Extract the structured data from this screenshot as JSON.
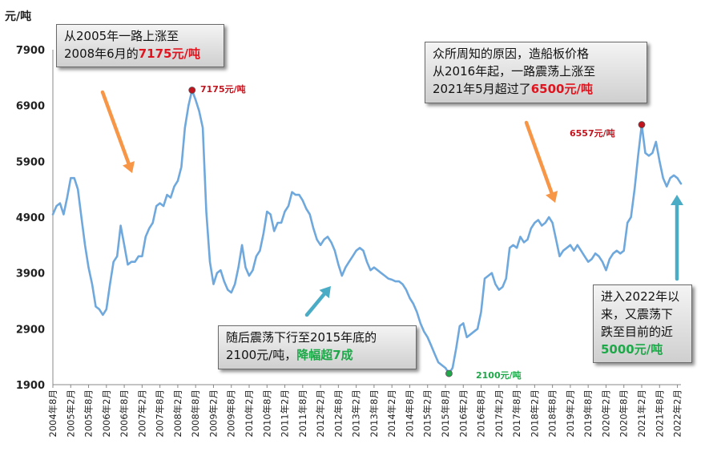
{
  "chart_data": {
    "type": "line",
    "ylabel": "元/吨",
    "ylim": [
      1900,
      7900
    ],
    "yticks": [
      1900,
      2900,
      3900,
      4900,
      5900,
      6900,
      7900
    ],
    "xticks": [
      "2004年8月",
      "2005年2月",
      "2005年8月",
      "2006年2月",
      "2006年8月",
      "2007年2月",
      "2007年8月",
      "2008年2月",
      "2008年8月",
      "2009年2月",
      "2009年8月",
      "2010年2月",
      "2010年8月",
      "2011年2月",
      "2011年8月",
      "2012年2月",
      "2012年8月",
      "2013年2月",
      "2013年8月",
      "2014年2月",
      "2014年8月",
      "2015年2月",
      "2015年8月",
      "2016年2月",
      "2016年8月",
      "2017年2月",
      "2017年8月",
      "2018年2月",
      "2018年8月",
      "2019年2月",
      "2019年8月",
      "2020年2月",
      "2020年8月",
      "2021年2月",
      "2021年8月",
      "2022年2月"
    ],
    "line_color": "#6fa8dc",
    "series": [
      {
        "values": [
          [
            0,
            4950
          ],
          [
            0.5,
            5100
          ],
          [
            1,
            5150
          ],
          [
            1.5,
            4950
          ],
          [
            2,
            5250
          ],
          [
            2.5,
            5600
          ],
          [
            3,
            5600
          ],
          [
            3.5,
            5400
          ],
          [
            4,
            4900
          ],
          [
            4.5,
            4400
          ],
          [
            5,
            4000
          ],
          [
            5.5,
            3700
          ],
          [
            6,
            3300
          ],
          [
            6.5,
            3250
          ],
          [
            7,
            3150
          ],
          [
            7.5,
            3250
          ],
          [
            8,
            3700
          ],
          [
            8.5,
            4100
          ],
          [
            9,
            4200
          ],
          [
            9.5,
            4750
          ],
          [
            10,
            4400
          ],
          [
            10.5,
            4050
          ],
          [
            11,
            4100
          ],
          [
            11.5,
            4100
          ],
          [
            12,
            4200
          ],
          [
            12.5,
            4200
          ],
          [
            13,
            4550
          ],
          [
            13.5,
            4700
          ],
          [
            14,
            4800
          ],
          [
            14.5,
            5100
          ],
          [
            15,
            5150
          ],
          [
            15.5,
            5100
          ],
          [
            16,
            5300
          ],
          [
            16.5,
            5250
          ],
          [
            17,
            5450
          ],
          [
            17.5,
            5550
          ],
          [
            18,
            5800
          ],
          [
            18.5,
            6500
          ],
          [
            19,
            6900
          ],
          [
            19.5,
            7175
          ],
          [
            20,
            7000
          ],
          [
            20.5,
            6800
          ],
          [
            21,
            6500
          ],
          [
            21.5,
            5000
          ],
          [
            22,
            4100
          ],
          [
            22.5,
            3700
          ],
          [
            23,
            3900
          ],
          [
            23.5,
            3950
          ],
          [
            24,
            3750
          ],
          [
            24.5,
            3600
          ],
          [
            25,
            3550
          ],
          [
            25.5,
            3700
          ],
          [
            26,
            4000
          ],
          [
            26.5,
            4400
          ],
          [
            27,
            4000
          ],
          [
            27.5,
            3850
          ],
          [
            28,
            3950
          ],
          [
            28.5,
            4200
          ],
          [
            29,
            4300
          ],
          [
            29.5,
            4600
          ],
          [
            30,
            5000
          ],
          [
            30.5,
            4950
          ],
          [
            31,
            4650
          ],
          [
            31.5,
            4800
          ],
          [
            32,
            4800
          ],
          [
            32.5,
            5000
          ],
          [
            33,
            5100
          ],
          [
            33.5,
            5350
          ],
          [
            34,
            5300
          ],
          [
            34.5,
            5300
          ],
          [
            35,
            5200
          ],
          [
            35.5,
            5050
          ],
          [
            36,
            4950
          ],
          [
            36.5,
            4700
          ],
          [
            37,
            4500
          ],
          [
            37.5,
            4400
          ],
          [
            38,
            4500
          ],
          [
            38.5,
            4550
          ],
          [
            39,
            4450
          ],
          [
            39.5,
            4300
          ],
          [
            40,
            4050
          ],
          [
            40.5,
            3850
          ],
          [
            41,
            4000
          ],
          [
            41.5,
            4100
          ],
          [
            42,
            4200
          ],
          [
            42.5,
            4300
          ],
          [
            43,
            4350
          ],
          [
            43.5,
            4300
          ],
          [
            44,
            4100
          ],
          [
            44.5,
            3950
          ],
          [
            45,
            4000
          ],
          [
            45.5,
            3950
          ],
          [
            46,
            3900
          ],
          [
            46.5,
            3850
          ],
          [
            47,
            3800
          ],
          [
            47.5,
            3780
          ],
          [
            48,
            3750
          ],
          [
            48.5,
            3750
          ],
          [
            49,
            3700
          ],
          [
            49.5,
            3600
          ],
          [
            50,
            3450
          ],
          [
            50.5,
            3350
          ],
          [
            51,
            3200
          ],
          [
            51.5,
            3000
          ],
          [
            52,
            2850
          ],
          [
            52.5,
            2750
          ],
          [
            53,
            2600
          ],
          [
            53.5,
            2450
          ],
          [
            54,
            2300
          ],
          [
            54.5,
            2250
          ],
          [
            55,
            2200
          ],
          [
            55.5,
            2100
          ],
          [
            56,
            2200
          ],
          [
            56.5,
            2550
          ],
          [
            57,
            2950
          ],
          [
            57.5,
            3000
          ],
          [
            58,
            2750
          ],
          [
            58.5,
            2800
          ],
          [
            59,
            2850
          ],
          [
            59.5,
            2900
          ],
          [
            60,
            3200
          ],
          [
            60.5,
            3800
          ],
          [
            61,
            3850
          ],
          [
            61.5,
            3900
          ],
          [
            62,
            3700
          ],
          [
            62.5,
            3600
          ],
          [
            63,
            3650
          ],
          [
            63.5,
            3800
          ],
          [
            64,
            4350
          ],
          [
            64.5,
            4400
          ],
          [
            65,
            4350
          ],
          [
            65.5,
            4550
          ],
          [
            66,
            4450
          ],
          [
            66.5,
            4500
          ],
          [
            67,
            4700
          ],
          [
            67.5,
            4800
          ],
          [
            68,
            4850
          ],
          [
            68.5,
            4750
          ],
          [
            69,
            4800
          ],
          [
            69.5,
            4900
          ],
          [
            70,
            4800
          ],
          [
            70.5,
            4500
          ],
          [
            71,
            4200
          ],
          [
            71.5,
            4300
          ],
          [
            72,
            4350
          ],
          [
            72.5,
            4400
          ],
          [
            73,
            4300
          ],
          [
            73.5,
            4400
          ],
          [
            74,
            4300
          ],
          [
            74.5,
            4200
          ],
          [
            75,
            4100
          ],
          [
            75.5,
            4150
          ],
          [
            76,
            4250
          ],
          [
            76.5,
            4200
          ],
          [
            77,
            4100
          ],
          [
            77.5,
            3950
          ],
          [
            78,
            4150
          ],
          [
            78.5,
            4250
          ],
          [
            79,
            4300
          ],
          [
            79.5,
            4250
          ],
          [
            80,
            4300
          ],
          [
            80.5,
            4800
          ],
          [
            81,
            4900
          ],
          [
            81.5,
            5400
          ],
          [
            82,
            6000
          ],
          [
            82.5,
            6557
          ],
          [
            83,
            6050
          ],
          [
            83.5,
            6000
          ],
          [
            84,
            6050
          ],
          [
            84.5,
            6250
          ],
          [
            85,
            5900
          ],
          [
            85.5,
            5600
          ],
          [
            86,
            5450
          ],
          [
            86.5,
            5600
          ],
          [
            87,
            5650
          ],
          [
            87.5,
            5600
          ],
          [
            88,
            5500
          ]
        ]
      }
    ],
    "points": [
      {
        "x": 19.5,
        "y": 7175,
        "label": "7175元/吨",
        "color": "#c0141e"
      },
      {
        "x": 55.5,
        "y": 2100,
        "label": "2100元/吨",
        "color": "#1fa84a"
      },
      {
        "x": 82.5,
        "y": 6557,
        "label": "6557元/吨",
        "color": "#c0141e"
      }
    ]
  },
  "unit_label": "元/吨",
  "callouts": {
    "c1": {
      "line1": "从2005年一路上涨至",
      "line2_a": "2008年6月的",
      "line2_b": "7175元/吨"
    },
    "c2": {
      "line1": "众所周知的原因，造船板价格",
      "line2": "从2016年起，一路震荡上涨至",
      "line3_a": "2021年5月超过了",
      "line3_b": "6500元/吨"
    },
    "c3": {
      "line1": "随后震荡下行至2015年底的",
      "line2_a": "2100元/吨，",
      "line2_b": "降幅超7成"
    },
    "c4": {
      "line1": "进入2022年以",
      "line2": "来，又震荡下",
      "line3": "跌至目前的近",
      "line4": "5000元/吨"
    }
  },
  "colors": {
    "orange_arrow": "#f79646",
    "teal_arrow": "#4bacc6",
    "red": "#e0141e",
    "green": "#1fa84a"
  }
}
